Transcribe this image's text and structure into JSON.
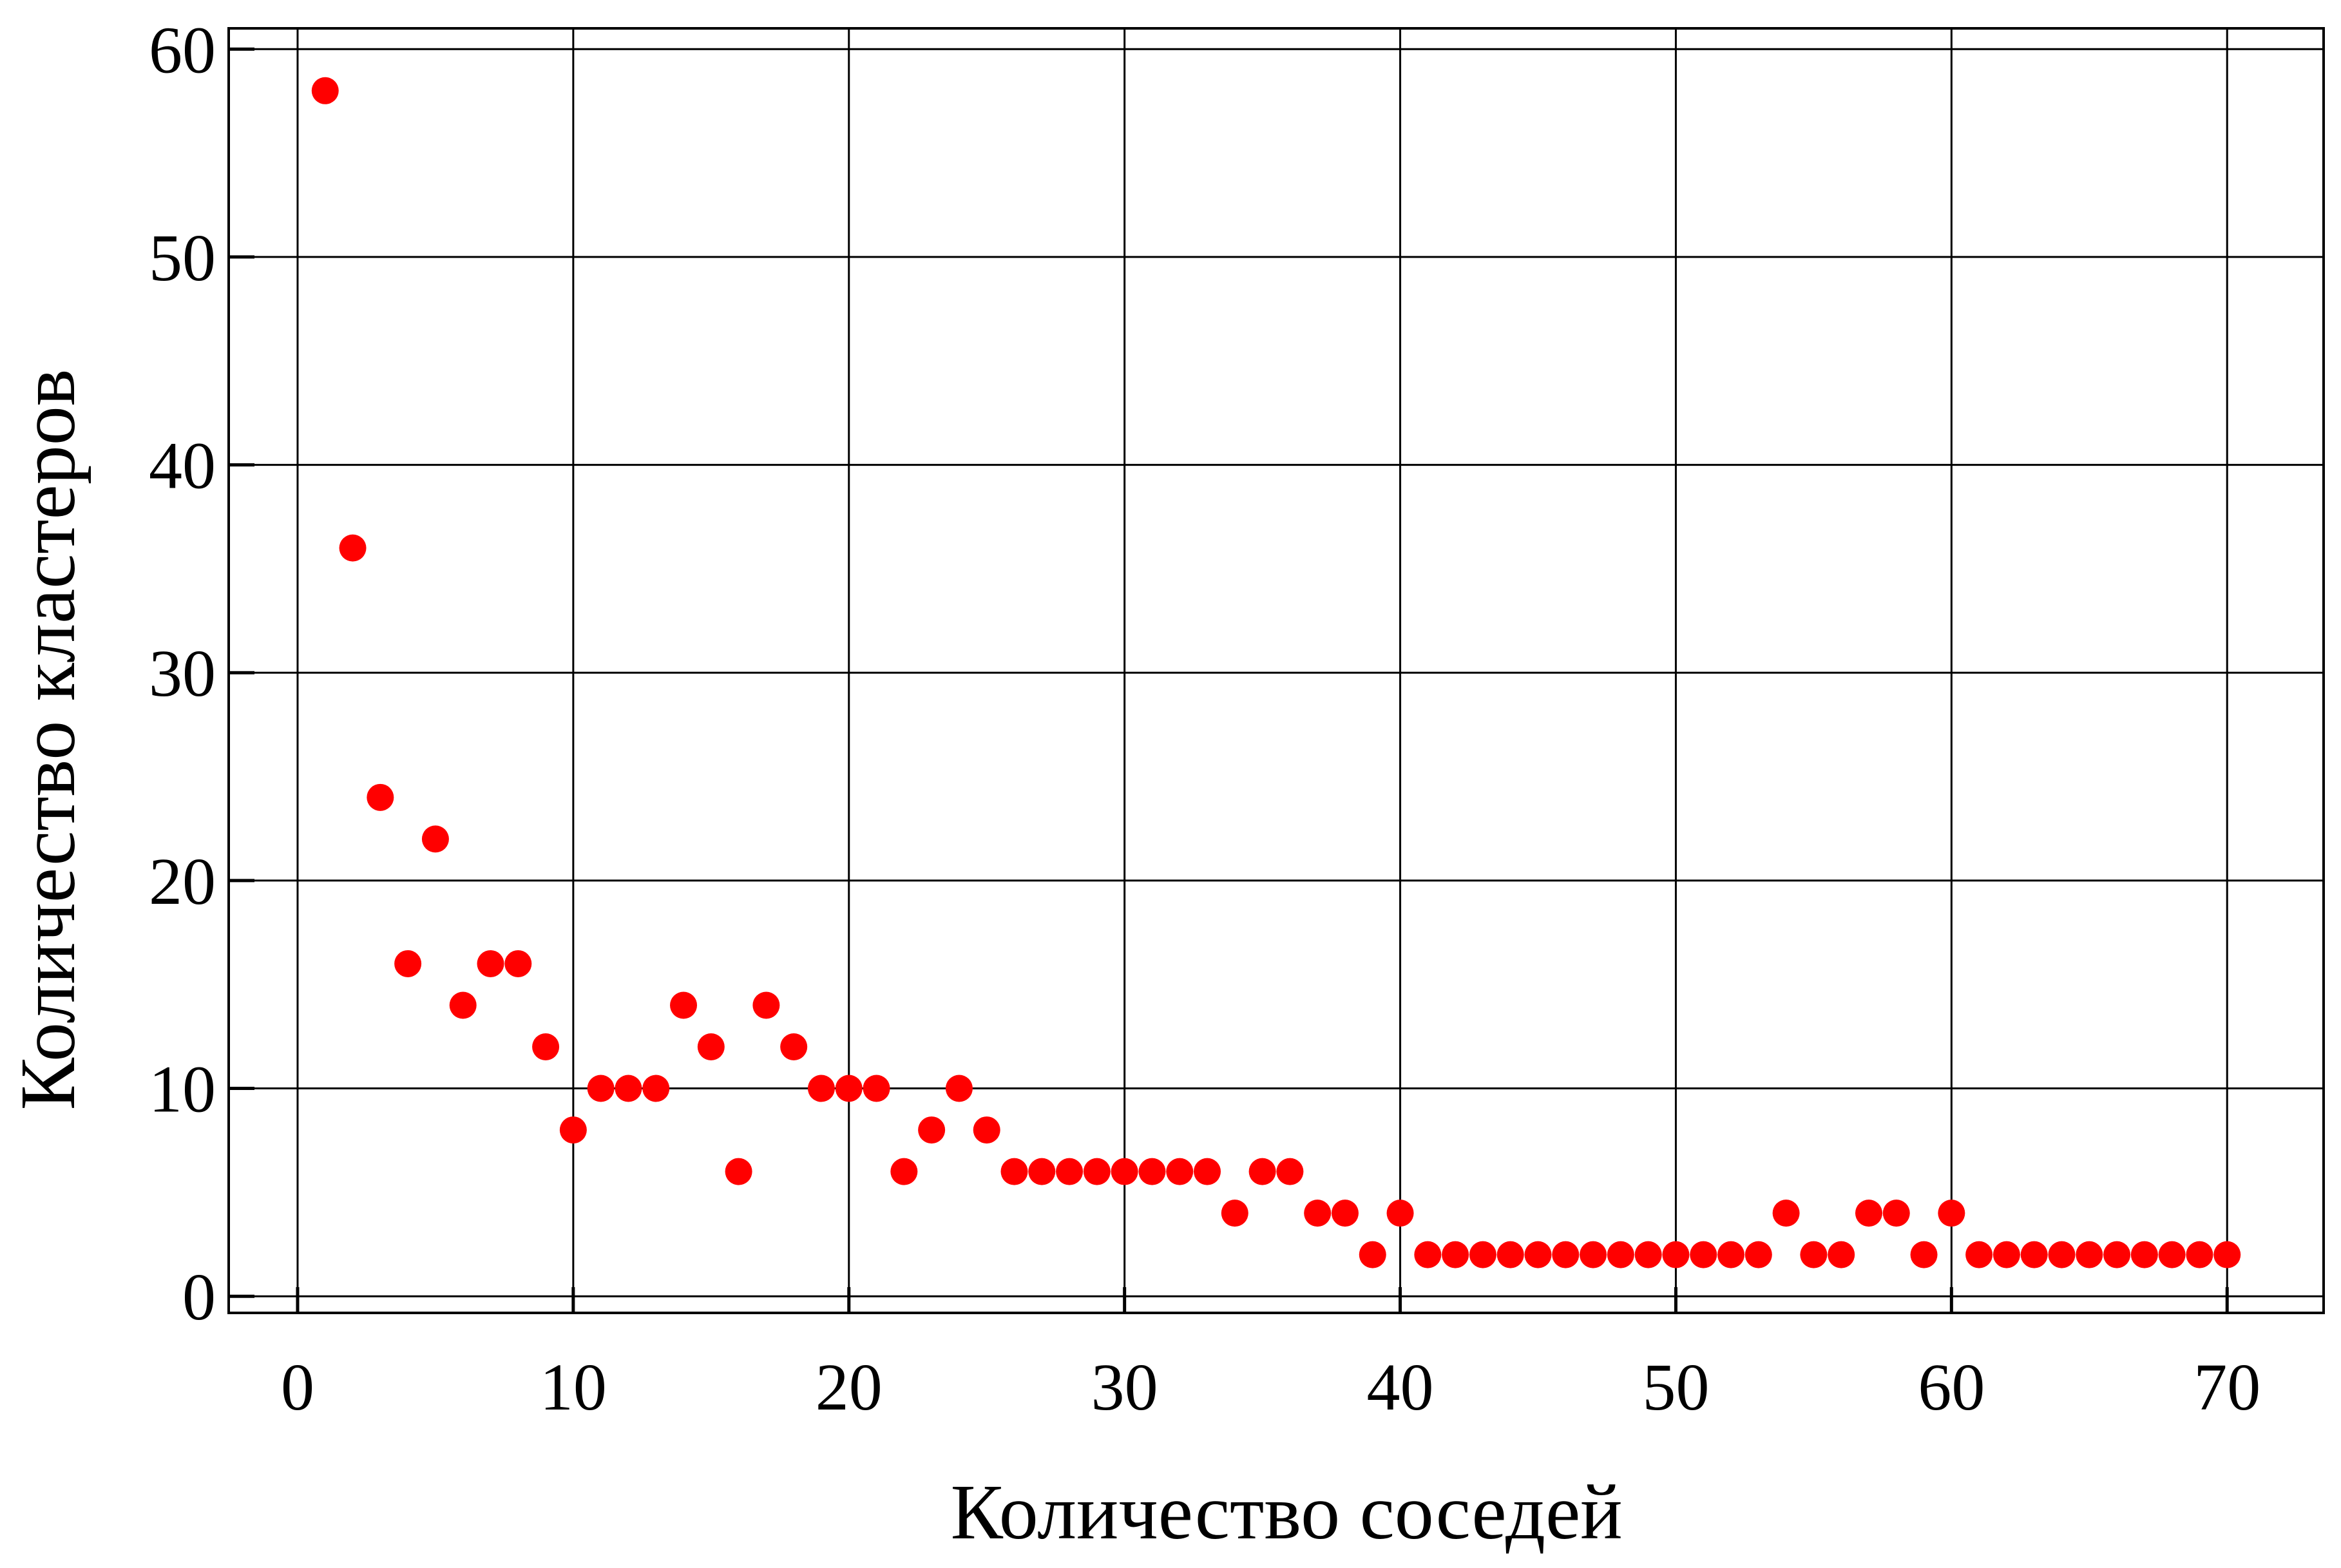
{
  "chart_data": {
    "type": "scatter",
    "title": "",
    "xlabel": "Количество соседей",
    "ylabel": "Количество кластеров",
    "xlim": [
      -2.5,
      73.5
    ],
    "ylim": [
      -0.8,
      61
    ],
    "x_ticks": [
      0,
      10,
      20,
      30,
      40,
      50,
      60,
      70
    ],
    "y_ticks": [
      0,
      10,
      20,
      30,
      40,
      50,
      60
    ],
    "x_tick_labels": [
      "0",
      "10",
      "20",
      "30",
      "40",
      "50",
      "60",
      "70"
    ],
    "y_tick_labels": [
      "0",
      "10",
      "20",
      "30",
      "40",
      "50",
      "60"
    ],
    "grid": true,
    "marker_color": "#ff0000",
    "series": [
      {
        "x": [
          1,
          2,
          3,
          4,
          5,
          6,
          7,
          8,
          9,
          10,
          11,
          12,
          13,
          14,
          15,
          16,
          17,
          18,
          19,
          20,
          21,
          22,
          23,
          24,
          25,
          26,
          27,
          28,
          29,
          30,
          31,
          32,
          33,
          34,
          35,
          36,
          37,
          38,
          39,
          40,
          41,
          42,
          43,
          44,
          45,
          46,
          47,
          48,
          49,
          50,
          51,
          52,
          53,
          54,
          55,
          56,
          57,
          58,
          59,
          60,
          61,
          62,
          63,
          64,
          65,
          66,
          67,
          68,
          69,
          70
        ],
        "y": [
          58,
          36,
          24,
          16,
          22,
          14,
          16,
          16,
          12,
          8,
          10,
          10,
          10,
          14,
          12,
          6,
          14,
          12,
          10,
          10,
          10,
          6,
          8,
          10,
          8,
          6,
          6,
          6,
          6,
          6,
          6,
          6,
          6,
          4,
          6,
          6,
          4,
          4,
          2,
          4,
          2,
          2,
          2,
          2,
          2,
          2,
          2,
          2,
          2,
          2,
          2,
          2,
          2,
          4,
          2,
          2,
          4,
          4,
          2,
          4,
          2,
          2,
          2,
          2,
          2,
          2,
          2,
          2,
          2,
          2
        ]
      }
    ]
  }
}
